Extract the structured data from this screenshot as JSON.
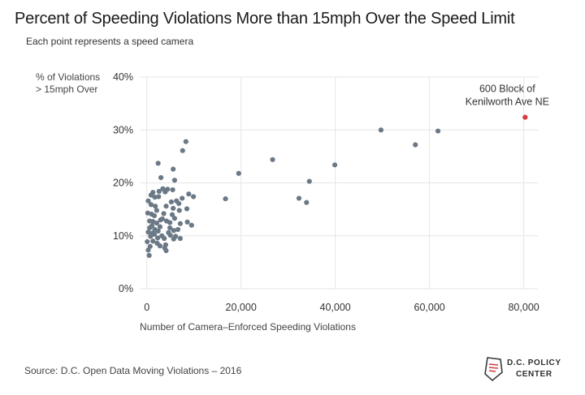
{
  "header": {
    "title": "Percent of Speeding Violations More than 15mph Over the Speed Limit",
    "subtitle": "Each point represents a speed camera"
  },
  "footer": {
    "source": "Source:  D.C. Open Data Moving Violations – 2016",
    "logo_line1": "D.C. POLICY",
    "logo_line2": "CENTER"
  },
  "colors": {
    "point": "#6b7886",
    "highlight": "#d63a3a",
    "grid": "#e6e6e6"
  },
  "chart_data": {
    "type": "scatter",
    "title": "Percent of Speeding Violations More than 15mph Over the Speed Limit",
    "subtitle": "Each point represents a speed camera",
    "xlabel": "Number of Camera–Enforced Speeding Violations",
    "ylabel": "% of Violations\n> 15mph Over",
    "xlim": [
      -1500,
      83000
    ],
    "ylim": [
      0,
      40
    ],
    "x_ticks": [
      0,
      20000,
      40000,
      60000,
      80000
    ],
    "x_tick_labels": [
      "0",
      "20,000",
      "40,000",
      "60,000",
      "80,000"
    ],
    "y_ticks": [
      0,
      10,
      20,
      30,
      40
    ],
    "y_tick_labels": [
      "0%",
      "10%",
      "20%",
      "30%",
      "40%"
    ],
    "grid": true,
    "series": [
      {
        "points": [
          [
            8300,
            27.8
          ],
          [
            7600,
            26.1
          ],
          [
            2400,
            23.7
          ],
          [
            5600,
            22.6
          ],
          [
            3000,
            21.0
          ],
          [
            5900,
            20.5
          ],
          [
            3400,
            18.9
          ],
          [
            4400,
            18.8
          ],
          [
            2600,
            18.4
          ],
          [
            3900,
            18.3
          ],
          [
            5500,
            18.7
          ],
          [
            1300,
            18.2
          ],
          [
            900,
            17.7
          ],
          [
            2500,
            17.4
          ],
          [
            1700,
            17.3
          ],
          [
            7500,
            17.1
          ],
          [
            6300,
            16.6
          ],
          [
            5200,
            16.4
          ],
          [
            8900,
            17.9
          ],
          [
            9900,
            17.4
          ],
          [
            6800,
            16.1
          ],
          [
            300,
            16.6
          ],
          [
            900,
            15.9
          ],
          [
            1800,
            15.6
          ],
          [
            4100,
            15.6
          ],
          [
            5600,
            15.2
          ],
          [
            6900,
            14.8
          ],
          [
            8500,
            15.1
          ],
          [
            2100,
            14.8
          ],
          [
            3600,
            14.2
          ],
          [
            5400,
            14.0
          ],
          [
            200,
            14.3
          ],
          [
            1000,
            14.1
          ],
          [
            1600,
            13.8
          ],
          [
            3300,
            13.2
          ],
          [
            5900,
            13.3
          ],
          [
            4200,
            12.8
          ],
          [
            600,
            12.8
          ],
          [
            1300,
            12.7
          ],
          [
            2100,
            12.4
          ],
          [
            4900,
            12.5
          ],
          [
            7100,
            12.3
          ],
          [
            8600,
            12.6
          ],
          [
            9500,
            12.0
          ],
          [
            1100,
            11.9
          ],
          [
            2800,
            11.7
          ],
          [
            600,
            11.5
          ],
          [
            1700,
            11.2
          ],
          [
            5700,
            11.0
          ],
          [
            6600,
            11.2
          ],
          [
            2400,
            10.9
          ],
          [
            4600,
            10.6
          ],
          [
            300,
            10.7
          ],
          [
            1200,
            10.5
          ],
          [
            3200,
            10.0
          ],
          [
            5000,
            10.1
          ],
          [
            6100,
            9.9
          ],
          [
            800,
            9.9
          ],
          [
            2300,
            9.6
          ],
          [
            3700,
            9.5
          ],
          [
            5700,
            9.4
          ],
          [
            7100,
            9.5
          ],
          [
            1300,
            9.0
          ],
          [
            100,
            8.9
          ],
          [
            2200,
            8.6
          ],
          [
            4000,
            8.3
          ],
          [
            700,
            8.0
          ],
          [
            2800,
            8.1
          ],
          [
            3800,
            7.7
          ],
          [
            300,
            7.3
          ],
          [
            4100,
            7.2
          ],
          [
            500,
            6.3
          ],
          [
            1600,
            10.3
          ],
          [
            4900,
            11.5
          ],
          [
            2900,
            13.0
          ],
          [
            16700,
            17.0
          ],
          [
            19500,
            21.8
          ],
          [
            26700,
            24.4
          ],
          [
            32300,
            17.1
          ],
          [
            33900,
            16.3
          ],
          [
            34500,
            20.3
          ],
          [
            39900,
            23.4
          ],
          [
            49700,
            30.0
          ],
          [
            57000,
            27.2
          ],
          [
            61800,
            29.8
          ]
        ]
      },
      {
        "highlight": true,
        "label": "600 Block of\nKenilworth Ave NE",
        "points": [
          [
            80300,
            32.4
          ]
        ]
      }
    ]
  }
}
